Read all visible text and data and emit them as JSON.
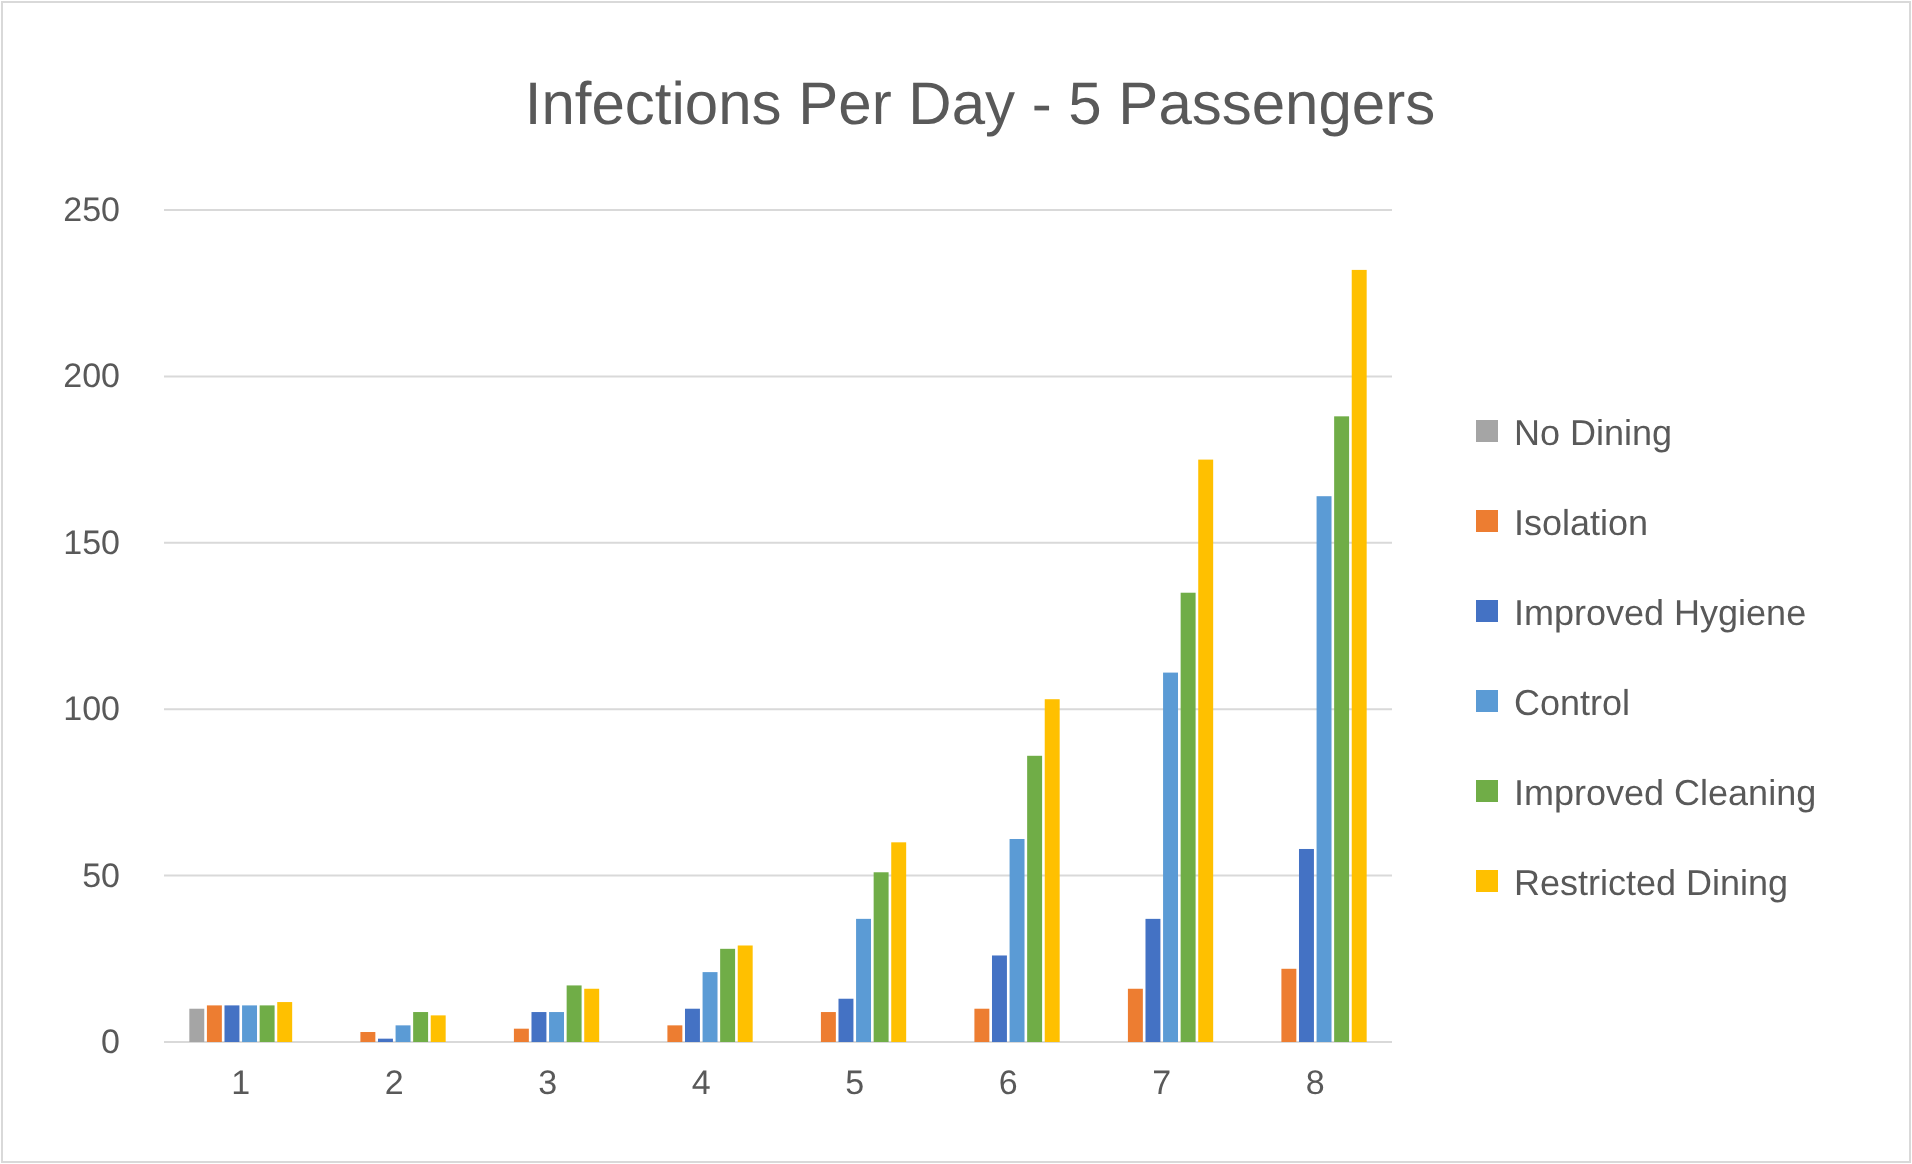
{
  "chart_data": {
    "type": "bar",
    "title": "Infections Per Day - 5 Passengers",
    "categories": [
      "1",
      "2",
      "3",
      "4",
      "5",
      "6",
      "7",
      "8"
    ],
    "series": [
      {
        "name": "No Dining",
        "color": "#a5a5a5",
        "values": [
          10,
          0,
          0,
          0,
          0,
          0,
          0,
          0
        ]
      },
      {
        "name": "Isolation",
        "color": "#ed7d31",
        "values": [
          11,
          3,
          4,
          5,
          9,
          10,
          16,
          22
        ]
      },
      {
        "name": "Improved Hygiene",
        "color": "#4472c4",
        "values": [
          11,
          1,
          9,
          10,
          13,
          26,
          37,
          58
        ]
      },
      {
        "name": "Control",
        "color": "#5b9bd5",
        "values": [
          11,
          5,
          9,
          21,
          37,
          61,
          111,
          164
        ]
      },
      {
        "name": "Improved Cleaning",
        "color": "#70ad47",
        "values": [
          11,
          9,
          17,
          28,
          51,
          86,
          135,
          188
        ]
      },
      {
        "name": "Restricted Dining",
        "color": "#ffc000",
        "values": [
          12,
          8,
          16,
          29,
          60,
          103,
          175,
          232
        ]
      }
    ],
    "ylim": [
      0,
      250
    ],
    "yticks": [
      0,
      50,
      100,
      150,
      200,
      250
    ],
    "grid": "y",
    "legend": "right"
  }
}
